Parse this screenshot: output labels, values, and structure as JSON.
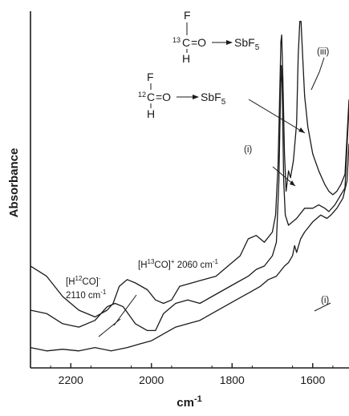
{
  "chart_data": {
    "type": "line",
    "title": "",
    "xlabel": "cm-1",
    "ylabel": "Absorbance",
    "xlim": [
      2300,
      1510
    ],
    "x_reversed": true,
    "y_ticks_shown": false,
    "grid": false,
    "x_ticks": [
      {
        "value": 2200,
        "label": "2200"
      },
      {
        "value": 2000,
        "label": "2000"
      },
      {
        "value": 1800,
        "label": "1800"
      },
      {
        "value": 1600,
        "label": "1600"
      }
    ],
    "series": [
      {
        "id": "trace-upper",
        "points": [
          [
            2300,
            0.3
          ],
          [
            2260,
            0.27
          ],
          [
            2220,
            0.21
          ],
          [
            2180,
            0.17
          ],
          [
            2140,
            0.15
          ],
          [
            2110,
            0.17
          ],
          [
            2095,
            0.19
          ],
          [
            2080,
            0.24
          ],
          [
            2060,
            0.26
          ],
          [
            2040,
            0.25
          ],
          [
            2010,
            0.23
          ],
          [
            1990,
            0.2
          ],
          [
            1970,
            0.19
          ],
          [
            1950,
            0.2
          ],
          [
            1930,
            0.24
          ],
          [
            1900,
            0.25
          ],
          [
            1870,
            0.26
          ],
          [
            1840,
            0.27
          ],
          [
            1810,
            0.3
          ],
          [
            1780,
            0.33
          ],
          [
            1760,
            0.38
          ],
          [
            1740,
            0.39
          ],
          [
            1720,
            0.37
          ],
          [
            1700,
            0.4
          ],
          [
            1692,
            0.45
          ],
          [
            1686,
            0.6
          ],
          [
            1682,
            0.8
          ],
          [
            1679,
            0.96
          ],
          [
            1677,
            0.98
          ],
          [
            1674,
            0.85
          ],
          [
            1670,
            0.63
          ],
          [
            1666,
            0.52
          ],
          [
            1660,
            0.58
          ],
          [
            1655,
            0.56
          ],
          [
            1648,
            0.61
          ],
          [
            1640,
            0.72
          ],
          [
            1636,
            0.92
          ],
          [
            1632,
            1.02
          ],
          [
            1629,
            1.02
          ],
          [
            1625,
            0.92
          ],
          [
            1620,
            0.8
          ],
          [
            1612,
            0.71
          ],
          [
            1600,
            0.63
          ],
          [
            1585,
            0.58
          ],
          [
            1570,
            0.54
          ],
          [
            1560,
            0.52
          ],
          [
            1550,
            0.51
          ],
          [
            1540,
            0.52
          ],
          [
            1530,
            0.54
          ],
          [
            1520,
            0.57
          ],
          [
            1510,
            0.79
          ]
        ]
      },
      {
        "id": "trace-middle",
        "points": [
          [
            2300,
            0.17
          ],
          [
            2260,
            0.16
          ],
          [
            2220,
            0.13
          ],
          [
            2180,
            0.12
          ],
          [
            2140,
            0.14
          ],
          [
            2110,
            0.18
          ],
          [
            2090,
            0.19
          ],
          [
            2070,
            0.18
          ],
          [
            2040,
            0.13
          ],
          [
            2010,
            0.11
          ],
          [
            1990,
            0.11
          ],
          [
            1970,
            0.16
          ],
          [
            1940,
            0.19
          ],
          [
            1910,
            0.2
          ],
          [
            1880,
            0.19
          ],
          [
            1850,
            0.21
          ],
          [
            1820,
            0.23
          ],
          [
            1790,
            0.25
          ],
          [
            1760,
            0.27
          ],
          [
            1740,
            0.29
          ],
          [
            1720,
            0.3
          ],
          [
            1700,
            0.33
          ],
          [
            1690,
            0.37
          ],
          [
            1684,
            0.55
          ],
          [
            1680,
            0.8
          ],
          [
            1678,
            0.89
          ],
          [
            1676,
            0.84
          ],
          [
            1672,
            0.55
          ],
          [
            1668,
            0.45
          ],
          [
            1660,
            0.42
          ],
          [
            1650,
            0.43
          ],
          [
            1640,
            0.44
          ],
          [
            1620,
            0.47
          ],
          [
            1600,
            0.47
          ],
          [
            1585,
            0.48
          ],
          [
            1570,
            0.47
          ],
          [
            1560,
            0.46
          ],
          [
            1545,
            0.48
          ],
          [
            1530,
            0.51
          ],
          [
            1520,
            0.53
          ],
          [
            1510,
            0.77
          ]
        ]
      },
      {
        "id": "trace-lower",
        "points": [
          [
            2300,
            0.06
          ],
          [
            2260,
            0.05
          ],
          [
            2220,
            0.055
          ],
          [
            2180,
            0.05
          ],
          [
            2140,
            0.06
          ],
          [
            2100,
            0.05
          ],
          [
            2060,
            0.06
          ],
          [
            2030,
            0.07
          ],
          [
            2000,
            0.08
          ],
          [
            1970,
            0.1
          ],
          [
            1940,
            0.12
          ],
          [
            1910,
            0.13
          ],
          [
            1880,
            0.14
          ],
          [
            1850,
            0.16
          ],
          [
            1820,
            0.18
          ],
          [
            1790,
            0.2
          ],
          [
            1760,
            0.22
          ],
          [
            1730,
            0.24
          ],
          [
            1710,
            0.26
          ],
          [
            1690,
            0.27
          ],
          [
            1670,
            0.3
          ],
          [
            1660,
            0.31
          ],
          [
            1650,
            0.33
          ],
          [
            1645,
            0.36
          ],
          [
            1640,
            0.34
          ],
          [
            1630,
            0.38
          ],
          [
            1620,
            0.4
          ],
          [
            1600,
            0.43
          ],
          [
            1580,
            0.45
          ],
          [
            1565,
            0.44
          ],
          [
            1555,
            0.45
          ],
          [
            1540,
            0.47
          ],
          [
            1525,
            0.5
          ],
          [
            1515,
            0.55
          ],
          [
            1510,
            0.66
          ]
        ]
      }
    ],
    "annotations": [
      {
        "id": "label-i-lower",
        "text": "(i)"
      },
      {
        "id": "label-i-upper",
        "text": "(i)"
      },
      {
        "id": "label-iii",
        "text": "(iii)"
      },
      {
        "id": "label-h12co",
        "text": "[H12CO]-",
        "base": "[H",
        "sup": "12",
        "rest": "CO]",
        "charge": "-"
      },
      {
        "id": "label-h12co-freq",
        "text": "2110 cm-1",
        "num": "2110 cm",
        "exp": "-1"
      },
      {
        "id": "label-h13co",
        "text": "[H13CO]+ 2060 cm-1",
        "base": "[H",
        "sup": "13",
        "rest": "CO]",
        "charge": "+",
        "tail": " 2060 cm",
        "exp": "-1"
      }
    ],
    "structures": [
      {
        "id": "struct-13c",
        "F": "F",
        "H": "H",
        "isotope": "13",
        "carbon": "C",
        "bond": "=O",
        "acceptor": "SbF",
        "sub": "5"
      },
      {
        "id": "struct-12c",
        "F": "F",
        "H": "H",
        "isotope": "12",
        "carbon": "C",
        "bond": "=O",
        "acceptor": "SbF",
        "sub": "5"
      }
    ]
  }
}
